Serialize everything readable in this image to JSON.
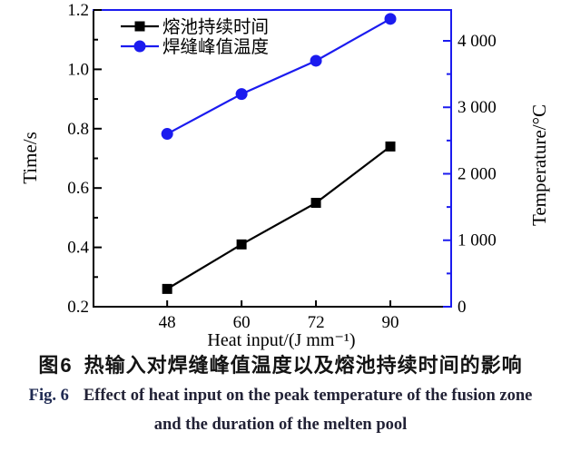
{
  "figure": {
    "caption_zh": {
      "label": "图6",
      "text": "热输入对焊缝峰值温度以及熔池持续时间的影响"
    },
    "caption_en": {
      "label": "Fig. 6",
      "line1": "Effect of heat input on the peak temperature of the fusion zone",
      "line2": "and the duration of the melten pool"
    }
  },
  "chart_data": {
    "type": "line",
    "title": "",
    "xlabel": "Heat input/(J mm⁻¹)",
    "x_tick_labels": [
      "48",
      "60",
      "72",
      "90"
    ],
    "categories": [
      48,
      60,
      72,
      90
    ],
    "series": [
      {
        "name": "熔池持续时间",
        "axis": "left",
        "marker": "square",
        "color": "#000000",
        "values": [
          0.26,
          0.41,
          0.55,
          0.74
        ]
      },
      {
        "name": "焊缝峰值温度",
        "axis": "right",
        "marker": "circle",
        "color": "#1b1bef",
        "values": [
          2600,
          3200,
          3700,
          4330
        ]
      }
    ],
    "left_axis": {
      "label": "Time/s",
      "min": 0.2,
      "max": 1.2,
      "ticks": [
        0.2,
        0.4,
        0.6,
        0.8,
        1.0,
        1.2
      ],
      "tick_labels": [
        "0.2",
        "0.4",
        "0.6",
        "0.8",
        "1.0",
        "1.2"
      ],
      "minor_step": 0.1,
      "color": "#000000"
    },
    "right_axis": {
      "label": "Temperature/°C",
      "min": 0,
      "max": 4464,
      "ticks": [
        0,
        1000,
        2000,
        3000,
        4000
      ],
      "tick_labels": [
        "0",
        "1 000",
        "2 000",
        "3 000",
        "4 000"
      ],
      "minor_step": 500,
      "color": "#1b1bef"
    },
    "legend": {
      "position": "top-left",
      "entries": [
        "熔池持续时间",
        "焊缝峰值温度"
      ]
    },
    "grid": false
  }
}
